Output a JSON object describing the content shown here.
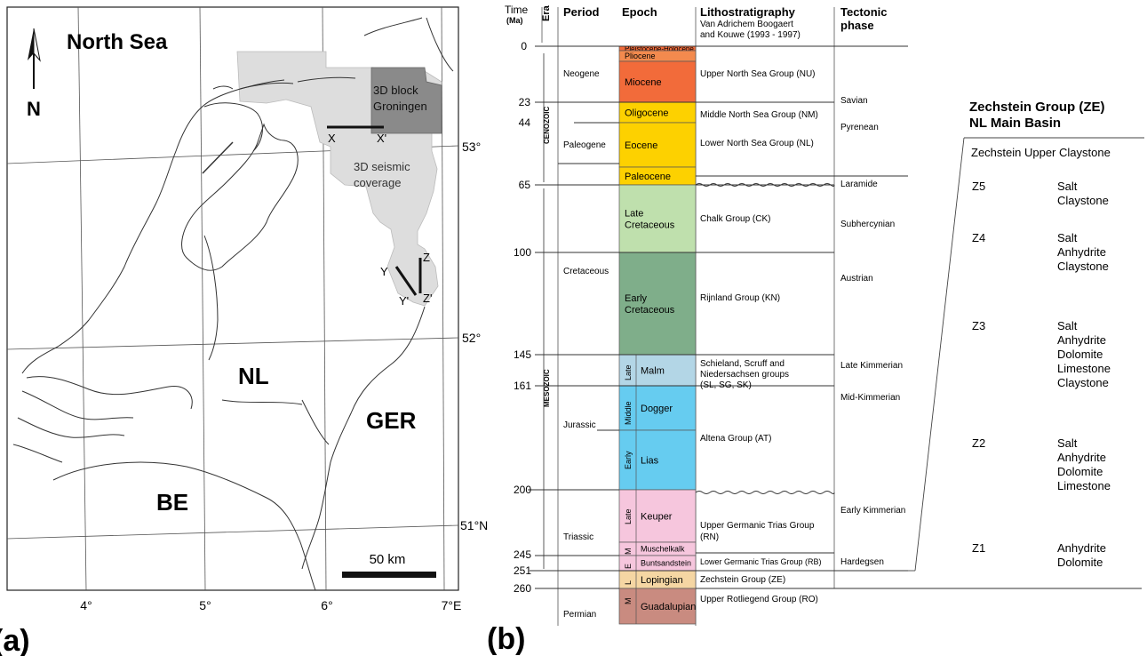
{
  "panel_a": {
    "panel_label": "(a)",
    "north_label": "N",
    "sea_label": "North Sea",
    "country_labels": [
      "NL",
      "GER",
      "BE"
    ],
    "block_label": "3D block\nGroningen",
    "coverage_label": "3D seismic\ncoverage",
    "section_labels": [
      "X",
      "X'",
      "Y",
      "Y'",
      "Z",
      "Z'"
    ],
    "lat_labels": [
      "53°",
      "52°",
      "51°N"
    ],
    "lon_labels": [
      "4°",
      "5°",
      "6°",
      "7°E"
    ],
    "scale_label": "50 km",
    "colors": {
      "coverage": "#dddddd",
      "block": "#8a8a8a",
      "land_line": "#333333"
    }
  },
  "panel_b": {
    "panel_label": "(b)",
    "headers": {
      "time": "Time",
      "time_unit": "(Ma)",
      "era": "Era",
      "period": "Period",
      "epoch": "Epoch",
      "litho": "Lithostratigraphy",
      "litho_sub": "Van Adrichem Boogaert\nand Kouwe (1993 - 1997)",
      "tectonic": "Tectonic\nphase"
    },
    "time_ticks": [
      "0",
      "23",
      "44",
      "65",
      "100",
      "145",
      "161",
      "200",
      "245",
      "251",
      "260"
    ],
    "eras": [
      "CENOZOIC",
      "MESOZOIC"
    ],
    "periods": [
      "Neogene",
      "Paleogene",
      "Cretaceous",
      "Jurassic",
      "Triassic",
      "Permian"
    ],
    "epochs": [
      {
        "name": "Pleistocene-Holocene",
        "color": "#f26b3a"
      },
      {
        "name": "Pliocene",
        "color": "#f38a4e"
      },
      {
        "name": "Miocene",
        "color": "#f26b3a"
      },
      {
        "name": "Oligocene",
        "color": "#fdd100"
      },
      {
        "name": "Eocene",
        "color": "#fdd100"
      },
      {
        "name": "Paleocene",
        "color": "#fdd100"
      },
      {
        "name": "Late\nCretaceous",
        "color": "#bfe0ad"
      },
      {
        "name": "Early\nCretaceous",
        "color": "#7fae8a"
      },
      {
        "name": "Malm",
        "color": "#b3d6e6"
      },
      {
        "name": "Dogger",
        "color": "#66ccf0"
      },
      {
        "name": "Lias",
        "color": "#66ccf0"
      },
      {
        "name": "Keuper",
        "color": "#f6c6dd"
      },
      {
        "name": "Muschelkalk",
        "color": "#f6c6dd"
      },
      {
        "name": "Buntsandstein",
        "color": "#f6c6dd"
      },
      {
        "name": "Lopingian",
        "color": "#f5d6a3"
      },
      {
        "name": "Guadalupian",
        "color": "#c98b80"
      }
    ],
    "sub_epochs": [
      "Late",
      "Middle",
      "Early",
      "Late",
      "M",
      "E",
      "L",
      "M"
    ],
    "litho_units": [
      "Upper North Sea Group (NU)",
      "Middle North Sea Group (NM)",
      "Lower North Sea Group (NL)",
      "Chalk Group (CK)",
      "Rijnland Group (KN)",
      "Schieland, Scruff and\nNiedersachsen groups\n(SL, SG, SK)",
      "Altena Group (AT)",
      "Upper Germanic Trias Group\n(RN)",
      "Lower Germanic Trias Group (RB)",
      "Zechstein Group (ZE)",
      "Upper Rotliegend Group (RO)"
    ],
    "tectonic_phases": [
      "Savian",
      "Pyrenean",
      "Laramide",
      "Subhercynian",
      "Austrian",
      "Late Kimmerian",
      "Mid-Kimmerian",
      "Early Kimmerian",
      "Hardegsen"
    ],
    "zechstein": {
      "title": "Zechstein Group (ZE)\nNL Main Basin",
      "top_unit": "Zechstein Upper Claystone",
      "cycles": [
        {
          "name": "Z5",
          "lithologies": "Salt\nClaystone"
        },
        {
          "name": "Z4",
          "lithologies": "Salt\nAnhydrite\nClaystone"
        },
        {
          "name": "Z3",
          "lithologies": "Salt\nAnhydrite\nDolomite\nLimestone\nClaystone"
        },
        {
          "name": "Z2",
          "lithologies": "Salt\nAnhydrite\nDolomite\nLimestone"
        },
        {
          "name": "Z1",
          "lithologies": "Anhydrite\nDolomite"
        }
      ]
    }
  }
}
